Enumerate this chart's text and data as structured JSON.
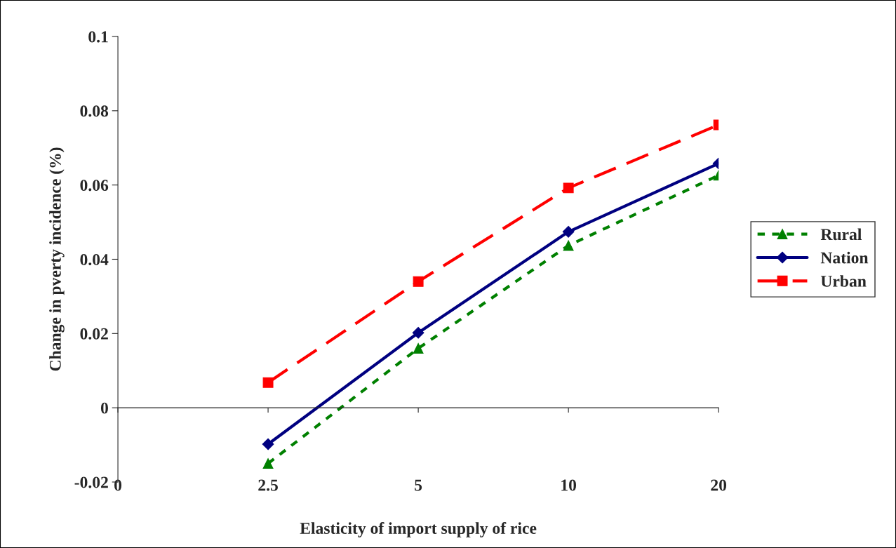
{
  "chart_data": {
    "type": "line",
    "xlabel": "Elasticity of import supply of rice",
    "ylabel": "Change in pverty incidence (%)",
    "categories": [
      "0",
      "2.5",
      "5",
      "10",
      "20"
    ],
    "series": [
      {
        "name": "Rural",
        "color": "#008000",
        "values": [
          null,
          -0.015,
          0.016,
          0.0437,
          0.0626
        ],
        "marker": "triangle",
        "line_style": "dotted"
      },
      {
        "name": "Nation",
        "color": "#000080",
        "values": [
          null,
          -0.0098,
          0.0202,
          0.0474,
          0.0658
        ],
        "marker": "diamond",
        "line_style": "solid"
      },
      {
        "name": "Urban",
        "color": "#ff0000",
        "values": [
          null,
          0.0068,
          0.034,
          0.0592,
          0.0762
        ],
        "marker": "square",
        "line_style": "dashed"
      }
    ],
    "ylim": [
      -0.02,
      0.1
    ],
    "yticks": [
      -0.02,
      0,
      0.02,
      0.04,
      0.06,
      0.08,
      0.1
    ],
    "legend": "right"
  }
}
